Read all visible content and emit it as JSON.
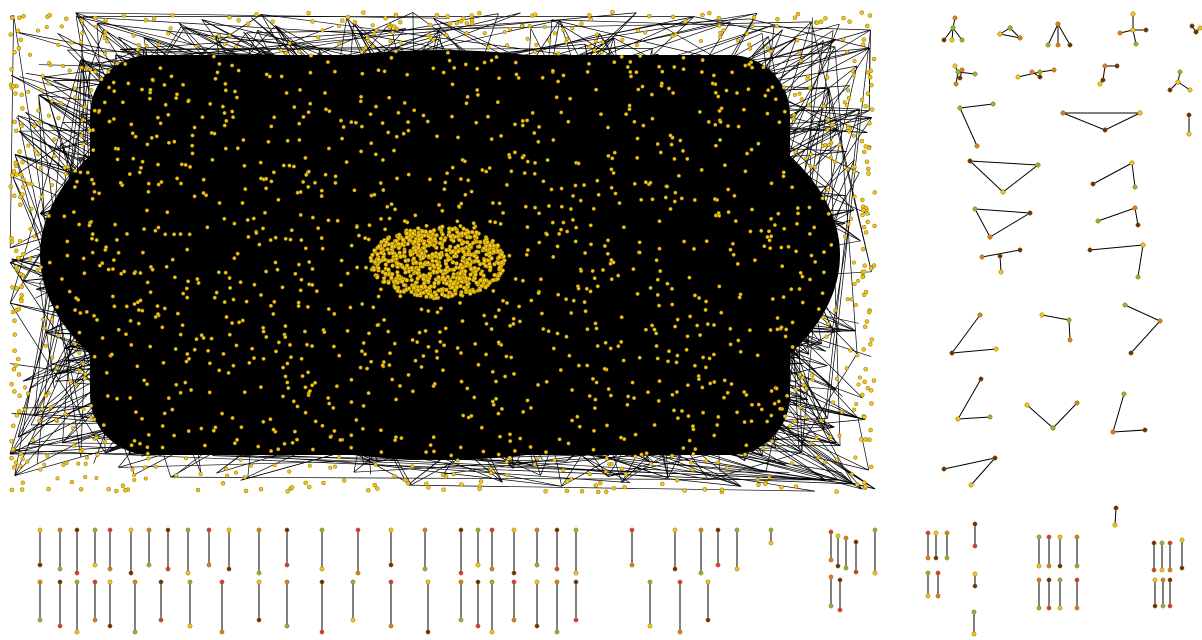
{
  "palette": {
    "background": "#ffffff",
    "edge": "#000000",
    "node_main": "#f2c718",
    "node_stroke": "#8a6d00",
    "node_orange": "#e07a26",
    "node_dark": "#6b2e12",
    "node_green": "#8ab83a",
    "node_red": "#d9384a"
  }
}
